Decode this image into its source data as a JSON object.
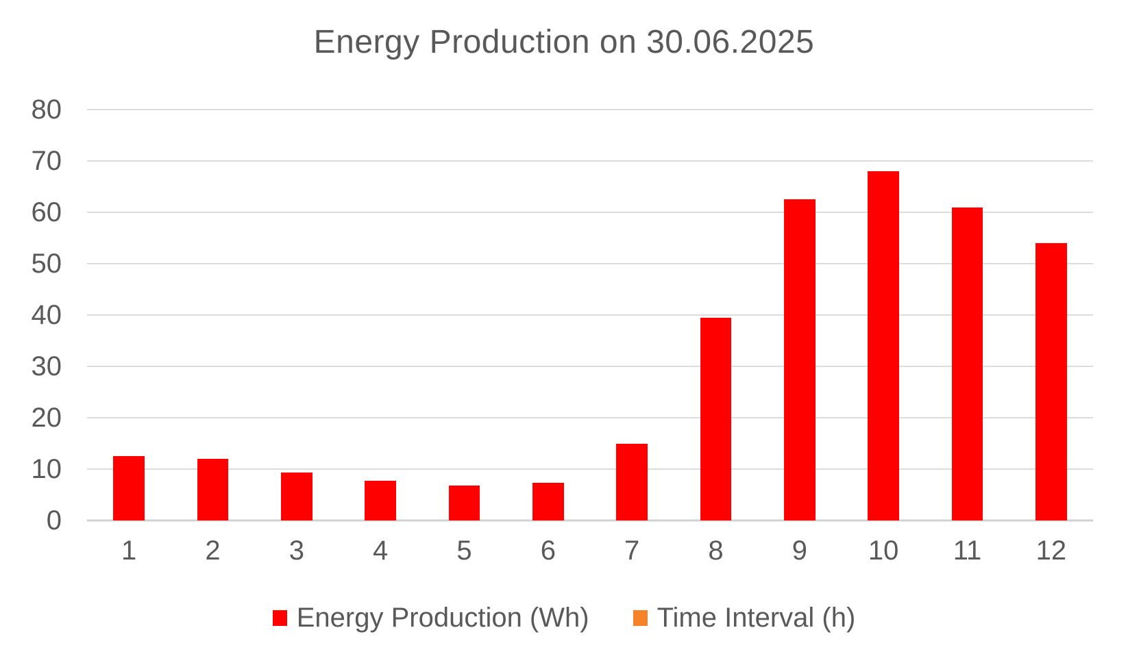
{
  "chart_data": {
    "type": "bar",
    "title": "Energy Production on 30.06.2025",
    "categories": [
      "1",
      "2",
      "3",
      "4",
      "5",
      "6",
      "7",
      "8",
      "9",
      "10",
      "11",
      "12"
    ],
    "series": [
      {
        "name": "Energy Production (Wh)",
        "color": "#FF0000",
        "values": [
          12.5,
          12,
          9.3,
          7.8,
          6.8,
          7.3,
          15,
          39.5,
          62.5,
          68,
          61,
          54
        ]
      },
      {
        "name": "Time Interval (h)",
        "color": "#F6822A",
        "values": []
      }
    ],
    "xlabel": "",
    "ylabel": "",
    "ylim": [
      0,
      80
    ],
    "yticks": [
      0,
      10,
      20,
      30,
      40,
      50,
      60,
      70,
      80
    ],
    "grid": "horizontal",
    "legend_position": "bottom"
  },
  "colors": {
    "background": "#FFFFFF",
    "text": "#595959",
    "gridline": "#DCDCDC",
    "baseline": "#D0D0D0"
  }
}
